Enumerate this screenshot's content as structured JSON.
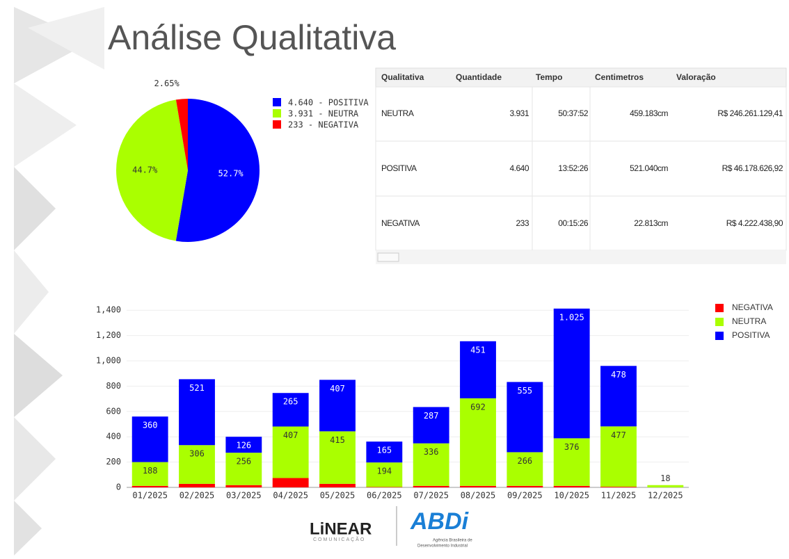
{
  "title": "Análise Qualitativa",
  "chart_data": [
    {
      "type": "pie",
      "categories": [
        "4.640 - POSITIVA",
        "3.931 - NEUTRA",
        "233 - NEGATIVA"
      ],
      "values": [
        52.7,
        44.7,
        2.65
      ],
      "value_labels": [
        "52.7%",
        "44.7%",
        "2.65%"
      ],
      "colors": [
        "#0000ff",
        "#aaff00",
        "#ff0000"
      ]
    },
    {
      "type": "bar",
      "stacked": true,
      "categories": [
        "01/2025",
        "02/2025",
        "03/2025",
        "04/2025",
        "05/2025",
        "06/2025",
        "07/2025",
        "08/2025",
        "09/2025",
        "10/2025",
        "11/2025",
        "12/2025"
      ],
      "series": [
        {
          "name": "NEGATIVA",
          "color": "#ff0000",
          "values": [
            12,
            28,
            18,
            74,
            28,
            3,
            12,
            12,
            12,
            12,
            5,
            0
          ]
        },
        {
          "name": "NEUTRA",
          "color": "#aaff00",
          "values": [
            188,
            306,
            256,
            407,
            415,
            194,
            336,
            692,
            266,
            376,
            477,
            18
          ]
        },
        {
          "name": "POSITIVA",
          "color": "#0000ff",
          "values": [
            360,
            521,
            126,
            265,
            407,
            165,
            287,
            451,
            555,
            1025,
            478,
            0
          ],
          "value_labels": [
            "360",
            "521",
            "126",
            "265",
            "407",
            "165",
            "287",
            "451",
            "555",
            "1.025",
            "478",
            ""
          ]
        }
      ],
      "ylim": [
        0,
        1500
      ],
      "yticks": [
        0,
        200,
        400,
        600,
        800,
        {
          "value": 1000,
          "label": "1,000"
        },
        {
          "value": 1200,
          "label": "1,200"
        },
        {
          "value": 1400,
          "label": "1,400"
        }
      ],
      "grid": true,
      "legend": "right"
    }
  ],
  "table": {
    "header": [
      "Qualitativa",
      "Quantidade",
      "Tempo",
      "Centimetros",
      "Valoração"
    ],
    "rows": [
      [
        "NEUTRA",
        "3.931",
        "50:37:52",
        "459.183cm",
        "R$ 246.261.129,41"
      ],
      [
        "POSITIVA",
        "4.640",
        "13:52:26",
        "521.040cm",
        "R$ 46.178.626,92"
      ],
      [
        "NEGATIVA",
        "233",
        "00:15:26",
        "22.813cm",
        "R$ 4.222.438,90"
      ]
    ]
  },
  "logos": {
    "linear": "LiNEAR",
    "linear_sub": "COMUNICAÇÃO",
    "abdi": "ABDi",
    "abdi_sub1": "Agência Brasileira de",
    "abdi_sub2": "Desenvolvimento Industrial"
  }
}
